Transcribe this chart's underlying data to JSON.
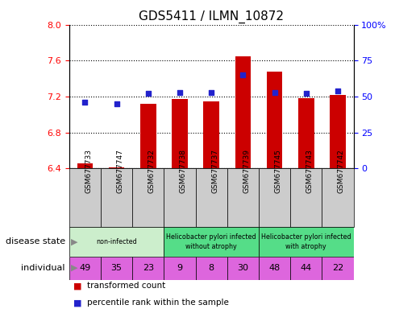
{
  "title": "GDS5411 / ILMN_10872",
  "samples": [
    "GSM677733",
    "GSM677747",
    "GSM677732",
    "GSM677738",
    "GSM677737",
    "GSM677739",
    "GSM677745",
    "GSM677743",
    "GSM677742"
  ],
  "transformed_count": [
    6.46,
    6.41,
    7.12,
    7.17,
    7.15,
    7.65,
    7.48,
    7.18,
    7.22
  ],
  "percentile_rank": [
    46,
    45,
    52,
    53,
    53,
    65,
    53,
    52,
    54
  ],
  "ylim_left": [
    6.4,
    8.0
  ],
  "ylim_right": [
    0,
    100
  ],
  "yticks_left": [
    6.4,
    6.8,
    7.2,
    7.6,
    8.0
  ],
  "yticks_right": [
    0,
    25,
    50,
    75,
    100
  ],
  "bar_color": "#cc0000",
  "dot_color": "#2222cc",
  "bar_bottom": 6.4,
  "group_colors": [
    "#cceecc",
    "#55dd88",
    "#55dd88"
  ],
  "group_labels": [
    "non-infected",
    "Helicobacter pylori infected\nwithout atrophy",
    "Helicobacter pylori infected\nwith atrophy"
  ],
  "group_ranges": [
    [
      0,
      3
    ],
    [
      3,
      6
    ],
    [
      6,
      9
    ]
  ],
  "individual_numbers": [
    49,
    35,
    23,
    9,
    8,
    30,
    48,
    44,
    22
  ],
  "individual_color": "#dd66dd",
  "tick_bg_color": "#cccccc",
  "legend_bar_label": "transformed count",
  "legend_dot_label": "percentile rank within the sample",
  "ds_label": "disease state",
  "ind_label": "individual"
}
